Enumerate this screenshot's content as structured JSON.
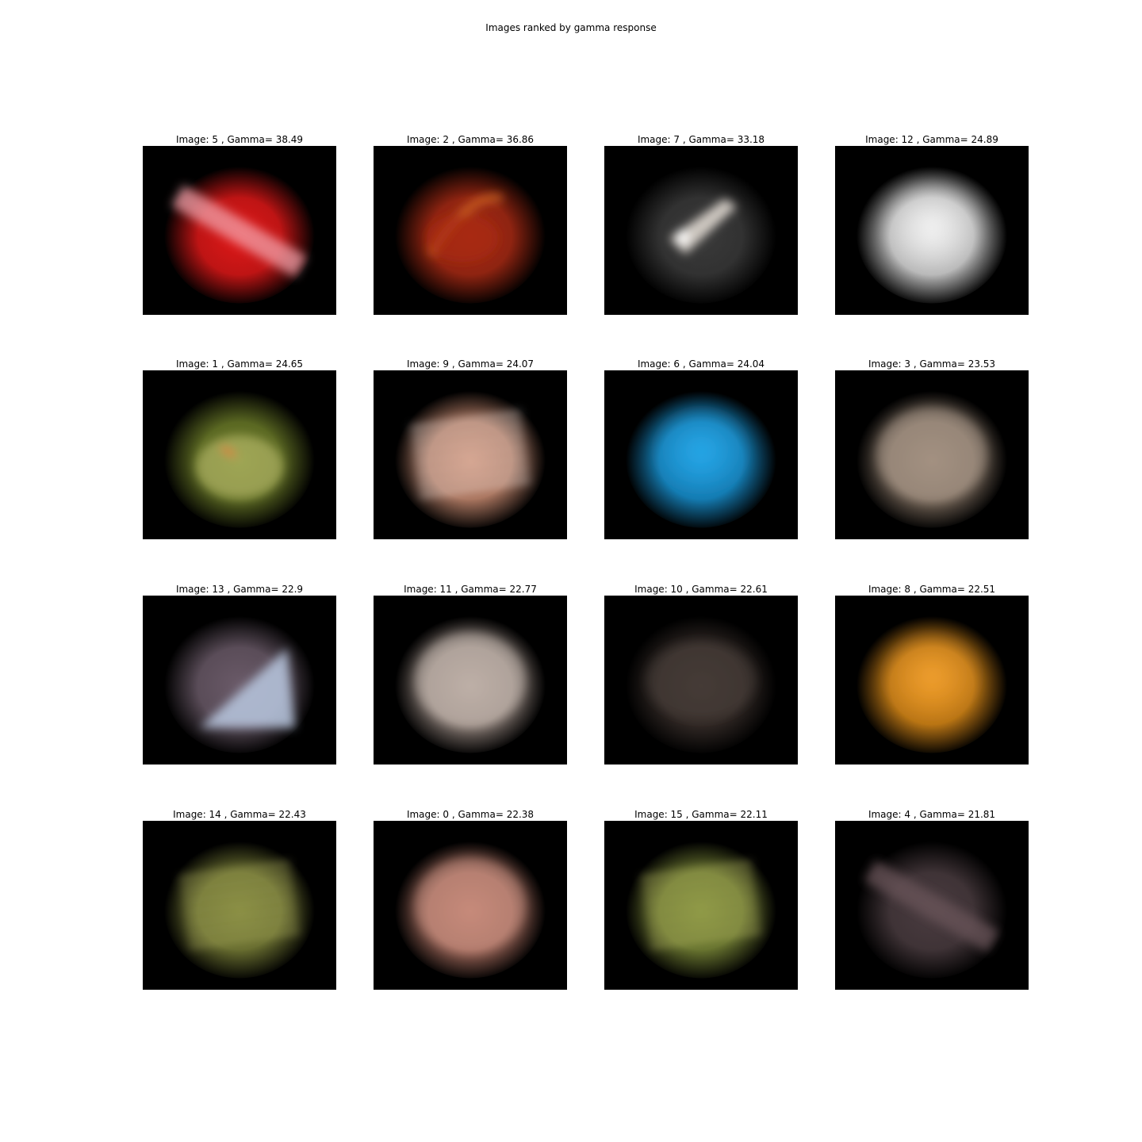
{
  "title": "Images ranked by gamma response",
  "panels": [
    {
      "label": "Image: 5 , Gamma= 38.49",
      "image": 5,
      "gamma": 38.49,
      "color": "#e01818",
      "highlight": "#f2a0a8",
      "shape": "diagonal-band"
    },
    {
      "label": "Image: 2 , Gamma= 36.86",
      "image": 2,
      "gamma": 36.86,
      "color": "#a82a14",
      "highlight": "#d66a28",
      "shape": "feather"
    },
    {
      "label": "Image: 7 , Gamma= 33.18",
      "image": 7,
      "gamma": 33.18,
      "color": "#3a3a3a",
      "highlight": "#e8e0d8",
      "shape": "scattered"
    },
    {
      "label": "Image: 12 , Gamma= 24.89",
      "image": 12,
      "gamma": 24.89,
      "color": "#d8d8d8",
      "highlight": "#f4f4f4",
      "shape": "blob"
    },
    {
      "label": "Image: 1 , Gamma= 24.65",
      "image": 1,
      "gamma": 24.65,
      "color": "#6a7a28",
      "highlight": "#c8c878",
      "shape": "foliage"
    },
    {
      "label": "Image: 9 , Gamma= 24.07",
      "image": 9,
      "gamma": 24.07,
      "color": "#c88a70",
      "highlight": "#f8f0ec",
      "shape": "stripes"
    },
    {
      "label": "Image: 6 , Gamma= 24.04",
      "image": 6,
      "gamma": 24.04,
      "color": "#1890d0",
      "highlight": "#28a8e8",
      "shape": "blob"
    },
    {
      "label": "Image: 3 , Gamma= 23.53",
      "image": 3,
      "gamma": 23.53,
      "color": "#8a7868",
      "highlight": "#c0b0a0",
      "shape": "speckle"
    },
    {
      "label": "Image: 13 , Gamma= 22.9",
      "image": 13,
      "gamma": 22.9,
      "color": "#6a5a68",
      "highlight": "#b8c8e0",
      "shape": "diagonal-split"
    },
    {
      "label": "Image: 11 , Gamma= 22.77",
      "image": 11,
      "gamma": 22.77,
      "color": "#a09088",
      "highlight": "#e0d4cc",
      "shape": "speckle"
    },
    {
      "label": "Image: 10 , Gamma= 22.61",
      "image": 10,
      "gamma": 22.61,
      "color": "#3a302c",
      "highlight": "#5a4c48",
      "shape": "faint"
    },
    {
      "label": "Image: 8 , Gamma= 22.51",
      "image": 8,
      "gamma": 22.51,
      "color": "#d88818",
      "highlight": "#f0a030",
      "shape": "blob"
    },
    {
      "label": "Image: 14 , Gamma= 22.43",
      "image": 14,
      "gamma": 22.43,
      "color": "#7a8038",
      "highlight": "#b8b868",
      "shape": "stripes"
    },
    {
      "label": "Image: 0 , Gamma= 22.38",
      "image": 0,
      "gamma": 22.38,
      "color": "#b87868",
      "highlight": "#d8a090",
      "shape": "speckle"
    },
    {
      "label": "Image: 15 , Gamma= 22.11",
      "image": 15,
      "gamma": 22.11,
      "color": "#7a8838",
      "highlight": "#c8c870",
      "shape": "stripes"
    },
    {
      "label": "Image: 4 , Gamma= 21.81",
      "image": 4,
      "gamma": 21.81,
      "color": "#4a3c40",
      "highlight": "#6a5458",
      "shape": "diagonal-band"
    }
  ]
}
